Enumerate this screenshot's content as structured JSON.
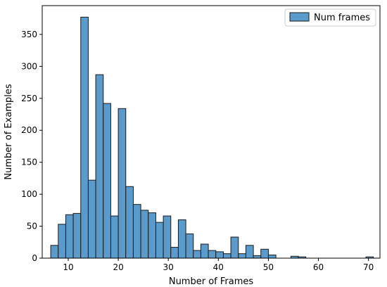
{
  "chart_data": {
    "type": "bar",
    "xlabel": "Number of Frames",
    "ylabel": "Number of Examples",
    "xlim": [
      4.8,
      72.3
    ],
    "ylim": [
      0,
      395
    ],
    "xticks": [
      10,
      20,
      30,
      40,
      50,
      60,
      70
    ],
    "yticks": [
      0,
      50,
      100,
      150,
      200,
      250,
      300,
      350
    ],
    "bin_width": 1.5,
    "bar_color": "#5b9bcc",
    "edge_color": "#1a1a1a",
    "legend_position": "top-right",
    "series": [
      {
        "name": "Num frames",
        "bins": [
          {
            "start": 6.5,
            "value": 20
          },
          {
            "start": 8.0,
            "value": 53
          },
          {
            "start": 9.5,
            "value": 68
          },
          {
            "start": 11.0,
            "value": 70
          },
          {
            "start": 12.5,
            "value": 377
          },
          {
            "start": 14.0,
            "value": 122
          },
          {
            "start": 15.5,
            "value": 287
          },
          {
            "start": 17.0,
            "value": 242
          },
          {
            "start": 18.5,
            "value": 66
          },
          {
            "start": 20.0,
            "value": 234
          },
          {
            "start": 21.5,
            "value": 112
          },
          {
            "start": 23.0,
            "value": 84
          },
          {
            "start": 24.5,
            "value": 75
          },
          {
            "start": 26.0,
            "value": 71
          },
          {
            "start": 27.5,
            "value": 56
          },
          {
            "start": 29.0,
            "value": 66
          },
          {
            "start": 30.5,
            "value": 17
          },
          {
            "start": 32.0,
            "value": 60
          },
          {
            "start": 33.5,
            "value": 38
          },
          {
            "start": 35.0,
            "value": 12
          },
          {
            "start": 36.5,
            "value": 22
          },
          {
            "start": 38.0,
            "value": 12
          },
          {
            "start": 39.5,
            "value": 10
          },
          {
            "start": 41.0,
            "value": 7
          },
          {
            "start": 42.5,
            "value": 33
          },
          {
            "start": 44.0,
            "value": 7
          },
          {
            "start": 45.5,
            "value": 20
          },
          {
            "start": 47.0,
            "value": 4
          },
          {
            "start": 48.5,
            "value": 14
          },
          {
            "start": 50.0,
            "value": 5
          },
          {
            "start": 54.5,
            "value": 3
          },
          {
            "start": 56.0,
            "value": 2
          },
          {
            "start": 69.5,
            "value": 2
          }
        ]
      }
    ]
  }
}
